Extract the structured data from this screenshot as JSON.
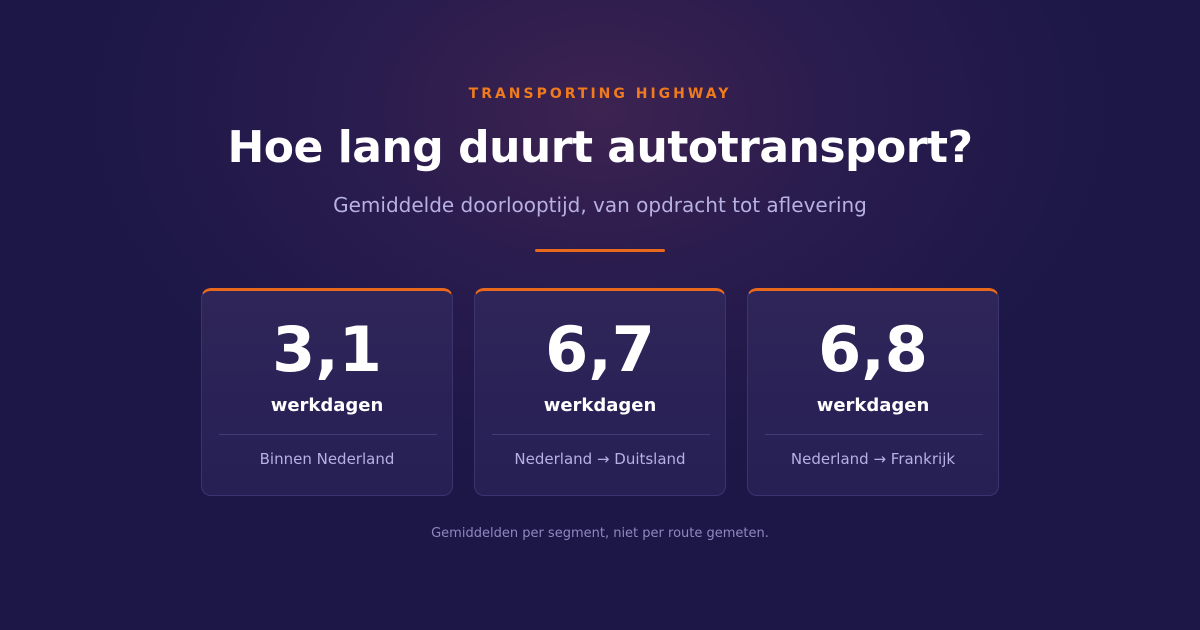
{
  "header": {
    "eyebrow": "TRANSPORTING HIGHWAY",
    "title": "Hoe lang duurt autotransport?",
    "subtitle": "Gemiddelde doorlooptijd, van opdracht tot aflevering"
  },
  "cards": [
    {
      "value": "3,1",
      "unit": "werkdagen",
      "route": "Binnen Nederland"
    },
    {
      "value": "6,7",
      "unit": "werkdagen",
      "route": "Nederland → Duitsland"
    },
    {
      "value": "6,8",
      "unit": "werkdagen",
      "route": "Nederland → Frankrijk"
    }
  ],
  "footnote": "Gemiddelden per segment, niet per route gemeten."
}
